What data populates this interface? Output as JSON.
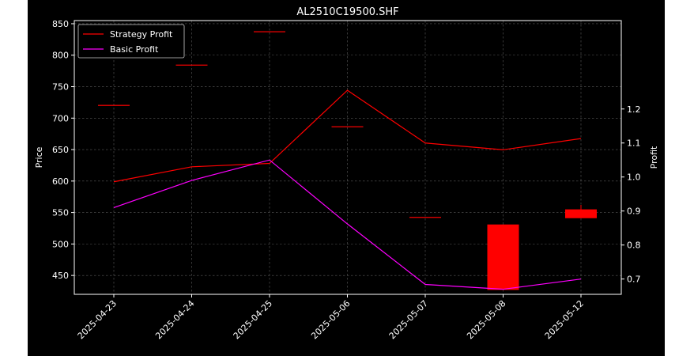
{
  "chart_data": {
    "type": "candlestick+line",
    "title": "AL2510C19500.SHF",
    "xlabel": "",
    "ylabel_left": "Price",
    "ylabel_right": "Profit",
    "categories": [
      "2025-04-23",
      "2025-04-24",
      "2025-04-25",
      "2025-05-06",
      "2025-05-07",
      "2025-05-08",
      "2025-05-12"
    ],
    "ylim_left": [
      420,
      855
    ],
    "yticks_left": [
      450,
      500,
      550,
      600,
      650,
      700,
      750,
      800,
      850
    ],
    "ylim_right": [
      0.655,
      1.46
    ],
    "yticks_right": [
      0.7,
      0.8,
      0.9,
      1.0,
      1.1,
      1.2
    ],
    "grid": true,
    "legend_position": "top-left",
    "candles": [
      {
        "date": "2025-04-23",
        "open": 721,
        "close": 721,
        "high": 721,
        "low": 721
      },
      {
        "date": "2025-04-24",
        "open": 785,
        "close": 785,
        "high": 785,
        "low": 785
      },
      {
        "date": "2025-04-25",
        "open": 838,
        "close": 838,
        "high": 838,
        "low": 838
      },
      {
        "date": "2025-05-06",
        "open": 687,
        "close": 687,
        "high": 687,
        "low": 687
      },
      {
        "date": "2025-05-07",
        "open": 543,
        "close": 543,
        "high": 543,
        "low": 543
      },
      {
        "date": "2025-05-08",
        "open": 531,
        "close": 427,
        "high": 531,
        "low": 427
      },
      {
        "date": "2025-05-12",
        "open": 555,
        "close": 541,
        "high": 562,
        "low": 541
      }
    ],
    "series": [
      {
        "name": "Strategy Profit",
        "axis": "right",
        "color": "#ff0000",
        "values": [
          0.986,
          1.03,
          1.04,
          1.255,
          1.1,
          1.08,
          1.113
        ]
      },
      {
        "name": "Basic Profit",
        "axis": "right",
        "color": "#ff00ff",
        "values": [
          0.91,
          0.99,
          1.05,
          0.862,
          0.684,
          0.67,
          0.7
        ]
      }
    ],
    "colors": {
      "background": "#000000",
      "candle": "#ff0000",
      "axes": "#ffffff",
      "grid": "#808080"
    }
  }
}
